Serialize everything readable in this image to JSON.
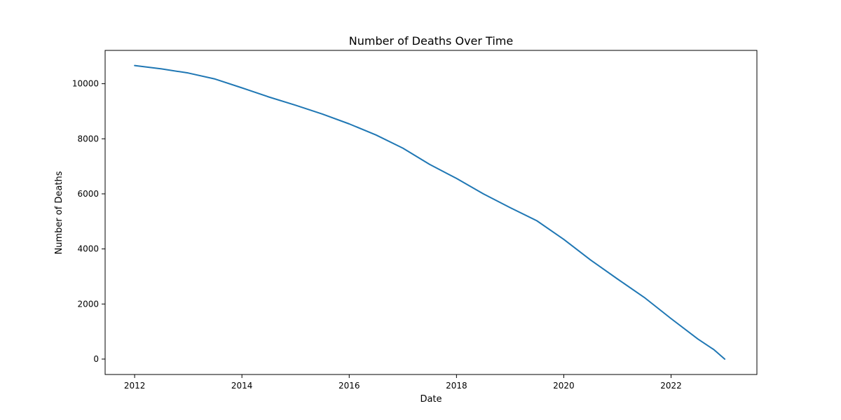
{
  "chart_data": {
    "type": "line",
    "title": "Number of Deaths Over Time",
    "xlabel": "Date",
    "ylabel": "Number of Deaths",
    "xlim": [
      2011.45,
      2023.6
    ],
    "ylim": [
      -560,
      11210
    ],
    "x_ticks": [
      2012,
      2014,
      2016,
      2018,
      2020,
      2022
    ],
    "x_tick_labels": [
      "2012",
      "2014",
      "2016",
      "2018",
      "2020",
      "2022"
    ],
    "y_ticks": [
      0,
      2000,
      4000,
      6000,
      8000,
      10000
    ],
    "y_tick_labels": [
      "0",
      "2000",
      "4000",
      "6000",
      "8000",
      "10000"
    ],
    "grid": false,
    "series_color": "#1f77b4",
    "series": [
      {
        "x": [
          2012.0,
          2012.5,
          2013.0,
          2013.5,
          2014.0,
          2014.5,
          2015.0,
          2015.5,
          2016.0,
          2016.5,
          2017.0,
          2017.5,
          2018.0,
          2018.5,
          2019.0,
          2019.5,
          2020.0,
          2020.5,
          2021.0,
          2021.5,
          2022.0,
          2022.5,
          2022.8,
          2023.0
        ],
        "y": [
          10660,
          10540,
          10390,
          10170,
          9850,
          9520,
          9220,
          8900,
          8540,
          8140,
          7660,
          7070,
          6560,
          6000,
          5500,
          5020,
          4350,
          3600,
          2910,
          2240,
          1470,
          730,
          340,
          0
        ]
      }
    ]
  }
}
